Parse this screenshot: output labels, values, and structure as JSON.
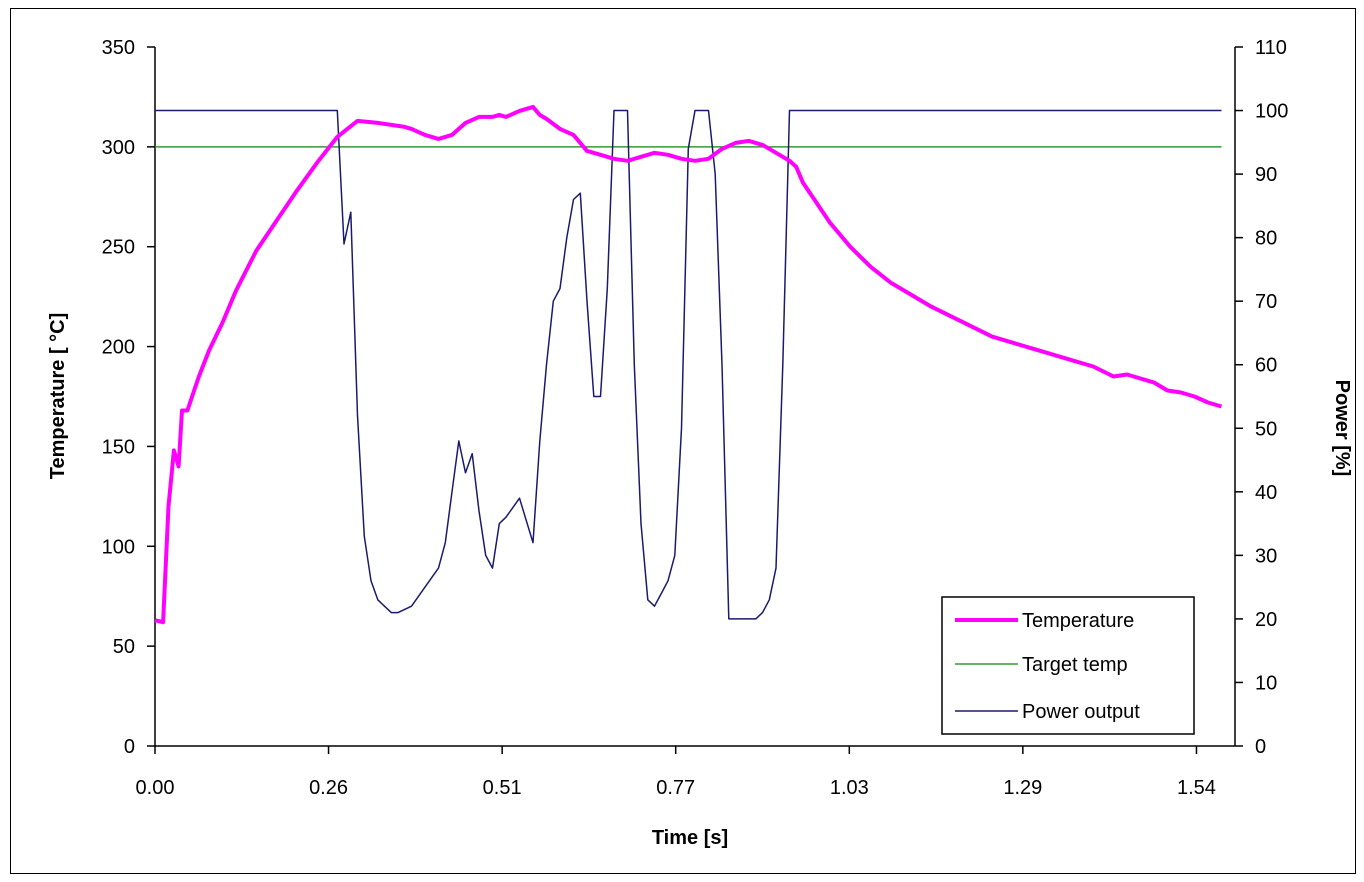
{
  "chart_data": {
    "type": "line",
    "title": "",
    "xlabel": "Time [s]",
    "ylabel_left": "Temperature [ °C]",
    "ylabel_right": "Power [%]",
    "xlim": [
      0,
      1.6
    ],
    "ylim_left": [
      0,
      350
    ],
    "ylim_right": [
      0,
      110
    ],
    "grid": false,
    "legend_position": "bottom-right",
    "x_ticks": [
      {
        "value": 0.0,
        "label": "0.00"
      },
      {
        "value": 0.2571,
        "label": "0.26"
      },
      {
        "value": 0.5143,
        "label": "0.51"
      },
      {
        "value": 0.7714,
        "label": "0.77"
      },
      {
        "value": 1.0286,
        "label": "1.03"
      },
      {
        "value": 1.2857,
        "label": "1.29"
      },
      {
        "value": 1.5429,
        "label": "1.54"
      }
    ],
    "y_ticks_left": [
      {
        "value": 0,
        "label": "0"
      },
      {
        "value": 50,
        "label": "50"
      },
      {
        "value": 100,
        "label": "100"
      },
      {
        "value": 150,
        "label": "150"
      },
      {
        "value": 200,
        "label": "200"
      },
      {
        "value": 250,
        "label": "250"
      },
      {
        "value": 300,
        "label": "300"
      },
      {
        "value": 350,
        "label": "350"
      }
    ],
    "y_ticks_right": [
      {
        "value": 0,
        "label": "0"
      },
      {
        "value": 10,
        "label": "10"
      },
      {
        "value": 20,
        "label": "20"
      },
      {
        "value": 30,
        "label": "30"
      },
      {
        "value": 40,
        "label": "40"
      },
      {
        "value": 50,
        "label": "50"
      },
      {
        "value": 60,
        "label": "60"
      },
      {
        "value": 70,
        "label": "70"
      },
      {
        "value": 80,
        "label": "80"
      },
      {
        "value": 90,
        "label": "90"
      },
      {
        "value": 100,
        "label": "100"
      },
      {
        "value": 110,
        "label": "110"
      }
    ],
    "series": [
      {
        "name": "Temperature",
        "axis": "left",
        "color": "#ff00ff",
        "x": [
          0.0,
          0.012,
          0.02,
          0.028,
          0.035,
          0.04,
          0.048,
          0.055,
          0.065,
          0.08,
          0.1,
          0.12,
          0.15,
          0.18,
          0.21,
          0.24,
          0.27,
          0.3,
          0.33,
          0.35,
          0.37,
          0.38,
          0.4,
          0.42,
          0.44,
          0.46,
          0.48,
          0.5,
          0.51,
          0.52,
          0.54,
          0.56,
          0.57,
          0.58,
          0.6,
          0.62,
          0.64,
          0.66,
          0.68,
          0.7,
          0.72,
          0.74,
          0.76,
          0.78,
          0.8,
          0.82,
          0.84,
          0.86,
          0.88,
          0.9,
          0.92,
          0.94,
          0.95,
          0.96,
          0.98,
          1.0,
          1.03,
          1.06,
          1.09,
          1.12,
          1.15,
          1.18,
          1.21,
          1.24,
          1.27,
          1.3,
          1.33,
          1.36,
          1.39,
          1.42,
          1.44,
          1.46,
          1.48,
          1.5,
          1.52,
          1.54,
          1.56,
          1.58
        ],
        "y": [
          63,
          62,
          120,
          148,
          140,
          168,
          168,
          175,
          185,
          198,
          212,
          228,
          248,
          263,
          278,
          292,
          305,
          313,
          312,
          311,
          310,
          309,
          306,
          304,
          306,
          312,
          315,
          315,
          316,
          315,
          318,
          320,
          316,
          314,
          309,
          306,
          298,
          296,
          294,
          293,
          295,
          297,
          296,
          294,
          293,
          294,
          299,
          302,
          303,
          301,
          297,
          293,
          290,
          282,
          272,
          262,
          250,
          240,
          232,
          226,
          220,
          215,
          210,
          205,
          202,
          199,
          196,
          193,
          190,
          185,
          186,
          184,
          182,
          178,
          177,
          175,
          172,
          170
        ]
      },
      {
        "name": "Target temp",
        "axis": "left",
        "color": "#339933",
        "x": [
          0.0,
          1.58
        ],
        "y": [
          300,
          300
        ]
      },
      {
        "name": "Power output",
        "axis": "right",
        "color": "#1a1a6e",
        "x": [
          0.0,
          0.27,
          0.28,
          0.29,
          0.3,
          0.31,
          0.32,
          0.33,
          0.34,
          0.35,
          0.36,
          0.38,
          0.4,
          0.42,
          0.43,
          0.44,
          0.45,
          0.46,
          0.47,
          0.48,
          0.49,
          0.5,
          0.51,
          0.52,
          0.54,
          0.56,
          0.57,
          0.58,
          0.59,
          0.6,
          0.61,
          0.62,
          0.63,
          0.64,
          0.65,
          0.66,
          0.67,
          0.68,
          0.69,
          0.7,
          0.71,
          0.72,
          0.73,
          0.74,
          0.75,
          0.76,
          0.77,
          0.78,
          0.79,
          0.8,
          0.81,
          0.82,
          0.83,
          0.84,
          0.85,
          0.86,
          0.87,
          0.88,
          0.89,
          0.9,
          0.91,
          0.92,
          0.93,
          0.94,
          0.95,
          1.58
        ],
        "y": [
          100,
          100,
          79,
          84,
          52,
          33,
          26,
          23,
          22,
          21,
          21,
          22,
          25,
          28,
          32,
          40,
          48,
          43,
          46,
          37,
          30,
          28,
          35,
          36,
          39,
          32,
          48,
          60,
          70,
          72,
          80,
          86,
          87,
          70,
          55,
          55,
          72,
          100,
          100,
          100,
          60,
          35,
          23,
          22,
          24,
          26,
          30,
          50,
          94,
          100,
          100,
          100,
          90,
          60,
          20,
          20,
          20,
          20,
          20,
          21,
          23,
          28,
          60,
          100,
          100,
          100
        ]
      }
    ]
  }
}
